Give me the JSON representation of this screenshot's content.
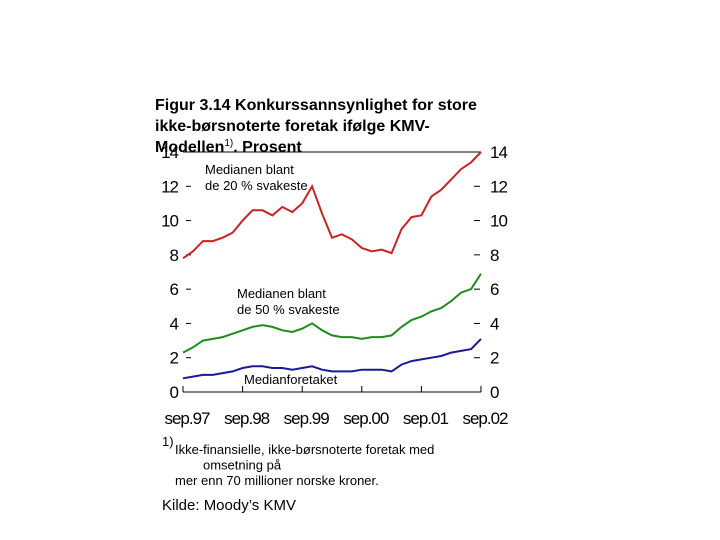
{
  "chart_data": {
    "type": "line",
    "title_lines": [
      "Figur 3.14  Konkurssannsynlighet for store",
      "ikke-børsnoterte foretak ifølge KMV-",
      "Modellen"
    ],
    "title_ref": "1)",
    "title_end": ". Prosent",
    "categories": [
      "sep.97",
      null,
      null,
      null,
      null,
      null,
      "sep.98",
      null,
      null,
      null,
      null,
      null,
      "sep.99",
      null,
      null,
      null,
      null,
      null,
      "sep.00",
      null,
      null,
      null,
      null,
      null,
      "sep.01",
      null,
      null,
      null,
      null,
      null,
      "sep.02"
    ],
    "series": [
      {
        "name": "Medianen blant de 20 % svakeste",
        "color": "#cc2222",
        "values": [
          7.8,
          8.2,
          8.8,
          8.8,
          9.0,
          9.3,
          10.0,
          10.6,
          10.6,
          10.3,
          10.8,
          10.5,
          11.0,
          12.0,
          10.4,
          9.0,
          9.2,
          8.9,
          8.4,
          8.2,
          8.3,
          8.1,
          9.5,
          10.2,
          10.3,
          11.4,
          11.8,
          12.4,
          13.0,
          13.4,
          14.0
        ]
      },
      {
        "name": "Medianen blant de 50 % svakeste",
        "color": "#1e8c1e",
        "values": [
          2.3,
          2.6,
          3.0,
          3.1,
          3.2,
          3.4,
          3.6,
          3.8,
          3.9,
          3.8,
          3.6,
          3.5,
          3.7,
          4.0,
          3.6,
          3.3,
          3.2,
          3.2,
          3.1,
          3.2,
          3.2,
          3.3,
          3.8,
          4.2,
          4.4,
          4.7,
          4.9,
          5.3,
          5.8,
          6.0,
          6.9
        ]
      },
      {
        "name": "Medianforetaket",
        "color": "#1a1a99",
        "values": [
          0.8,
          0.9,
          1.0,
          1.0,
          1.1,
          1.2,
          1.4,
          1.5,
          1.5,
          1.4,
          1.4,
          1.3,
          1.4,
          1.5,
          1.3,
          1.2,
          1.2,
          1.2,
          1.3,
          1.3,
          1.3,
          1.2,
          1.6,
          1.8,
          1.9,
          2.0,
          2.1,
          2.3,
          2.4,
          2.5,
          3.1
        ]
      }
    ],
    "ylim": [
      0,
      14
    ],
    "yticks": [
      0,
      2,
      4,
      6,
      8,
      10,
      12,
      14
    ],
    "y2lim": [
      0,
      14
    ],
    "y2ticks": [
      0,
      2,
      4,
      6,
      8,
      10,
      12,
      14
    ],
    "footnote_ref": "1)",
    "footnote_lines": [
      "Ikke-finansielle, ikke-børsnoterte foretak med",
      "omsetning på",
      "mer enn 70 millioner norske kroner."
    ],
    "source": "Kilde: Moody’s KMV"
  }
}
